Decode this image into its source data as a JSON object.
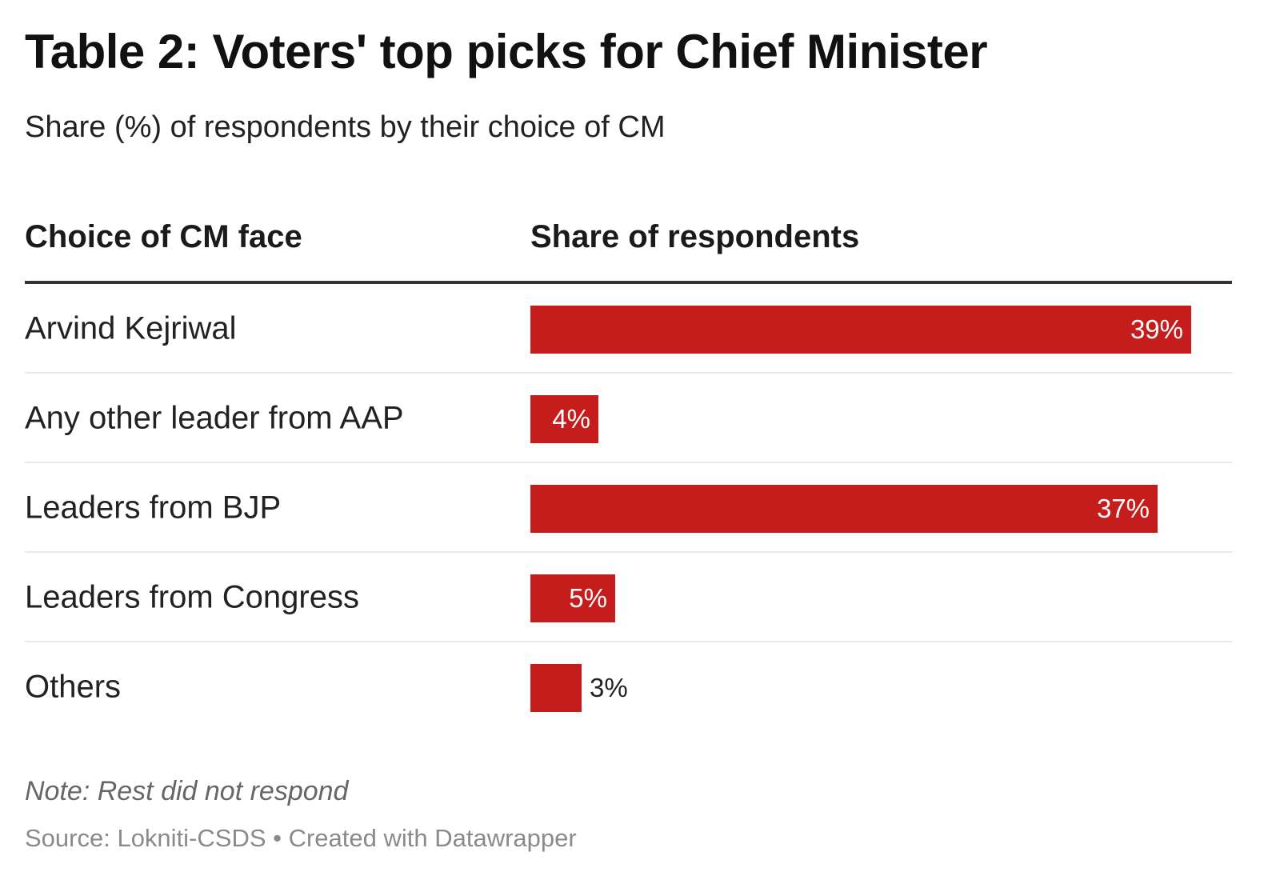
{
  "title": "Table 2: Voters' top picks for Chief Minister",
  "subtitle": "Share (%) of respondents by their choice of CM",
  "columns": {
    "label": "Choice of CM face",
    "value": "Share of respondents"
  },
  "colors": {
    "bar": "#c51c1c"
  },
  "note": "Note: Rest did not respond",
  "source": "Source: Lokniti-CSDS • Created with Datawrapper",
  "chart_data": {
    "type": "table",
    "title": "Table 2: Voters' top picks for Chief Minister",
    "subtitle": "Share (%) of respondents by their choice of CM",
    "columns": [
      "Choice of CM face",
      "Share of respondents"
    ],
    "categories": [
      "Arvind Kejriwal",
      "Any other leader from AAP",
      "Leaders from BJP",
      "Leaders from Congress",
      "Others"
    ],
    "values": [
      39,
      4,
      37,
      5,
      3
    ],
    "value_labels": [
      "39%",
      "4%",
      "37%",
      "5%",
      "3%"
    ],
    "unit": "%",
    "xlim": [
      0,
      40
    ],
    "grid": false,
    "legend": "none"
  }
}
